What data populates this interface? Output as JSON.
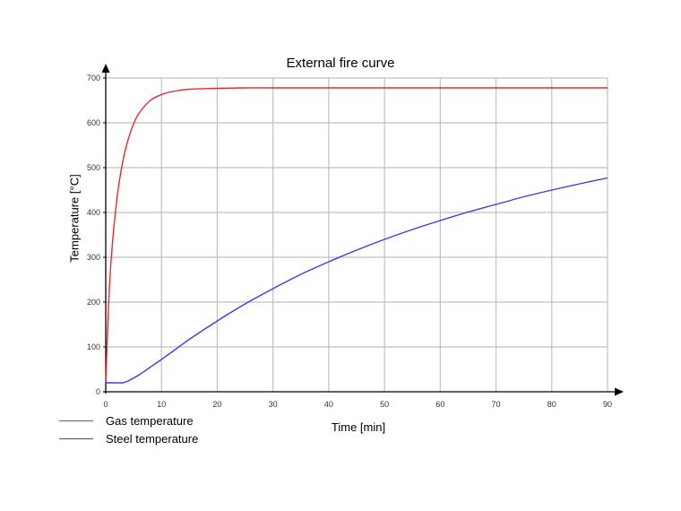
{
  "chart_data": {
    "type": "line",
    "title": "External fire curve",
    "xlabel": "Time [min]",
    "ylabel": "Temperature [°C]",
    "xlim": [
      0,
      90
    ],
    "ylim": [
      0,
      700
    ],
    "xticks": [
      0,
      10,
      20,
      30,
      40,
      50,
      60,
      70,
      80,
      90
    ],
    "yticks": [
      0,
      100,
      200,
      300,
      400,
      500,
      600,
      700
    ],
    "grid": true,
    "legend_position": "bottom-left",
    "series": [
      {
        "name": "Gas temperature",
        "color": "#e8282c",
        "x": [
          0,
          0.5,
          1,
          2,
          3,
          4,
          5,
          6,
          8,
          10,
          12,
          15,
          20,
          25,
          30,
          40,
          50,
          60,
          70,
          80,
          90
        ],
        "y": [
          20,
          190,
          300,
          430,
          510,
          562,
          598,
          622,
          650,
          663,
          670,
          675,
          677,
          678,
          678,
          678,
          678,
          678,
          678,
          678,
          678
        ]
      },
      {
        "name": "Steel temperature",
        "color": "#3c3ce8",
        "x": [
          0,
          1,
          2,
          3,
          4,
          6,
          8,
          10,
          12,
          15,
          20,
          25,
          30,
          35,
          40,
          45,
          50,
          55,
          60,
          65,
          70,
          75,
          80,
          85,
          90
        ],
        "y": [
          20,
          20,
          20,
          20,
          24,
          38,
          55,
          72,
          90,
          117,
          158,
          196,
          230,
          262,
          290,
          316,
          340,
          362,
          382,
          401,
          418,
          435,
          450,
          464,
          477
        ]
      }
    ]
  }
}
